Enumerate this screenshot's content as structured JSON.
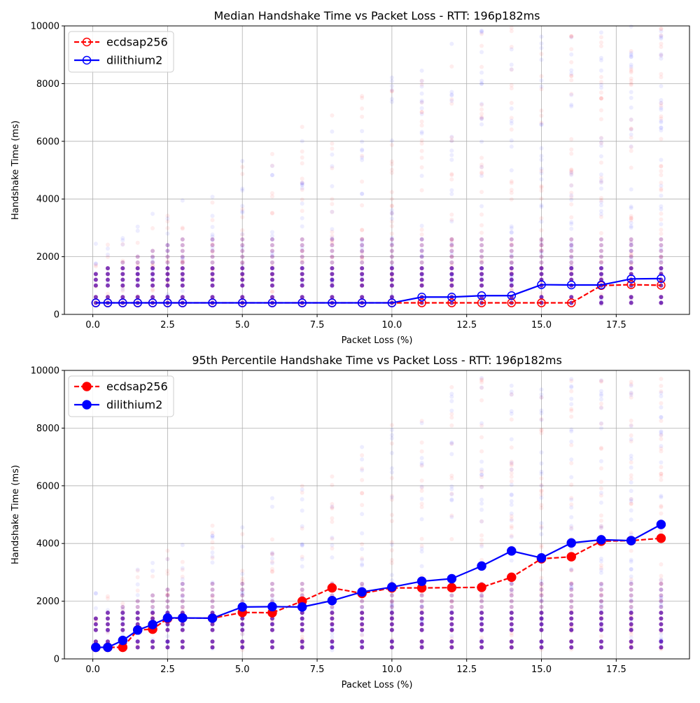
{
  "chart_data": [
    {
      "type": "line",
      "title": "Median Handshake Time vs Packet Loss - RTT: 196p182ms",
      "xlabel": "Packet Loss (%)",
      "ylabel": "Handshake Time (ms)",
      "xlim": [
        -0.95,
        19.95
      ],
      "ylim": [
        0,
        10000
      ],
      "xticks": [
        0.0,
        2.5,
        5.0,
        7.5,
        10.0,
        12.5,
        15.0,
        17.5
      ],
      "xtick_labels": [
        "0.0",
        "2.5",
        "5.0",
        "7.5",
        "10.0",
        "12.5",
        "15.0",
        "17.5"
      ],
      "yticks": [
        0,
        2000,
        4000,
        6000,
        8000,
        10000
      ],
      "ytick_labels": [
        "0",
        "2000",
        "4000",
        "6000",
        "8000",
        "10000"
      ],
      "grid": true,
      "legend_position": "top-left",
      "marker_style": "hollow",
      "x": [
        0.1,
        0.5,
        1,
        1.5,
        2,
        2.5,
        3,
        4,
        5,
        6,
        7,
        8,
        9,
        10,
        11,
        12,
        13,
        14,
        15,
        16,
        17,
        18,
        19
      ],
      "series": [
        {
          "name": "ecdsap256",
          "color": "#ff0000",
          "line_style": "dashed",
          "values": [
            400,
            400,
            400,
            400,
            400,
            400,
            400,
            400,
            400,
            400,
            400,
            400,
            400,
            400,
            400,
            400,
            400,
            400,
            400,
            400,
            1000,
            1030,
            1010
          ]
        },
        {
          "name": "dilithium2",
          "color": "#0000ff",
          "line_style": "solid",
          "values": [
            400,
            400,
            400,
            400,
            400,
            400,
            400,
            400,
            400,
            400,
            400,
            400,
            400,
            400,
            600,
            600,
            650,
            650,
            1030,
            1020,
            1020,
            1230,
            1240
          ]
        }
      ]
    },
    {
      "type": "line",
      "title": "95th Percentile Handshake Time vs Packet Loss - RTT: 196p182ms",
      "xlabel": "Packet Loss (%)",
      "ylabel": "Handshake Time (ms)",
      "xlim": [
        -0.95,
        19.95
      ],
      "ylim": [
        0,
        10000
      ],
      "xticks": [
        0.0,
        2.5,
        5.0,
        7.5,
        10.0,
        12.5,
        15.0,
        17.5
      ],
      "xtick_labels": [
        "0.0",
        "2.5",
        "5.0",
        "7.5",
        "10.0",
        "12.5",
        "15.0",
        "17.5"
      ],
      "yticks": [
        0,
        2000,
        4000,
        6000,
        8000,
        10000
      ],
      "ytick_labels": [
        "0",
        "2000",
        "4000",
        "6000",
        "8000",
        "10000"
      ],
      "grid": true,
      "legend_position": "top-left",
      "marker_style": "filled",
      "x": [
        0.1,
        0.5,
        1,
        1.5,
        2,
        2.5,
        3,
        4,
        5,
        6,
        7,
        8,
        9,
        10,
        11,
        12,
        13,
        14,
        15,
        16,
        17,
        18,
        19
      ],
      "series": [
        {
          "name": "ecdsap256",
          "color": "#ff0000",
          "line_style": "dashed",
          "values": [
            400,
            400,
            400,
            1000,
            1030,
            1400,
            1420,
            1410,
            1610,
            1600,
            2000,
            2460,
            2270,
            2460,
            2460,
            2470,
            2480,
            2830,
            3470,
            3540,
            4080,
            4100,
            4180
          ]
        },
        {
          "name": "dilithium2",
          "color": "#0000ff",
          "line_style": "solid",
          "values": [
            400,
            400,
            640,
            1000,
            1190,
            1420,
            1420,
            1410,
            1800,
            1810,
            1800,
            2020,
            2320,
            2490,
            2690,
            2780,
            3220,
            3740,
            3500,
            4020,
            4130,
            4100,
            4660
          ]
        }
      ]
    }
  ]
}
